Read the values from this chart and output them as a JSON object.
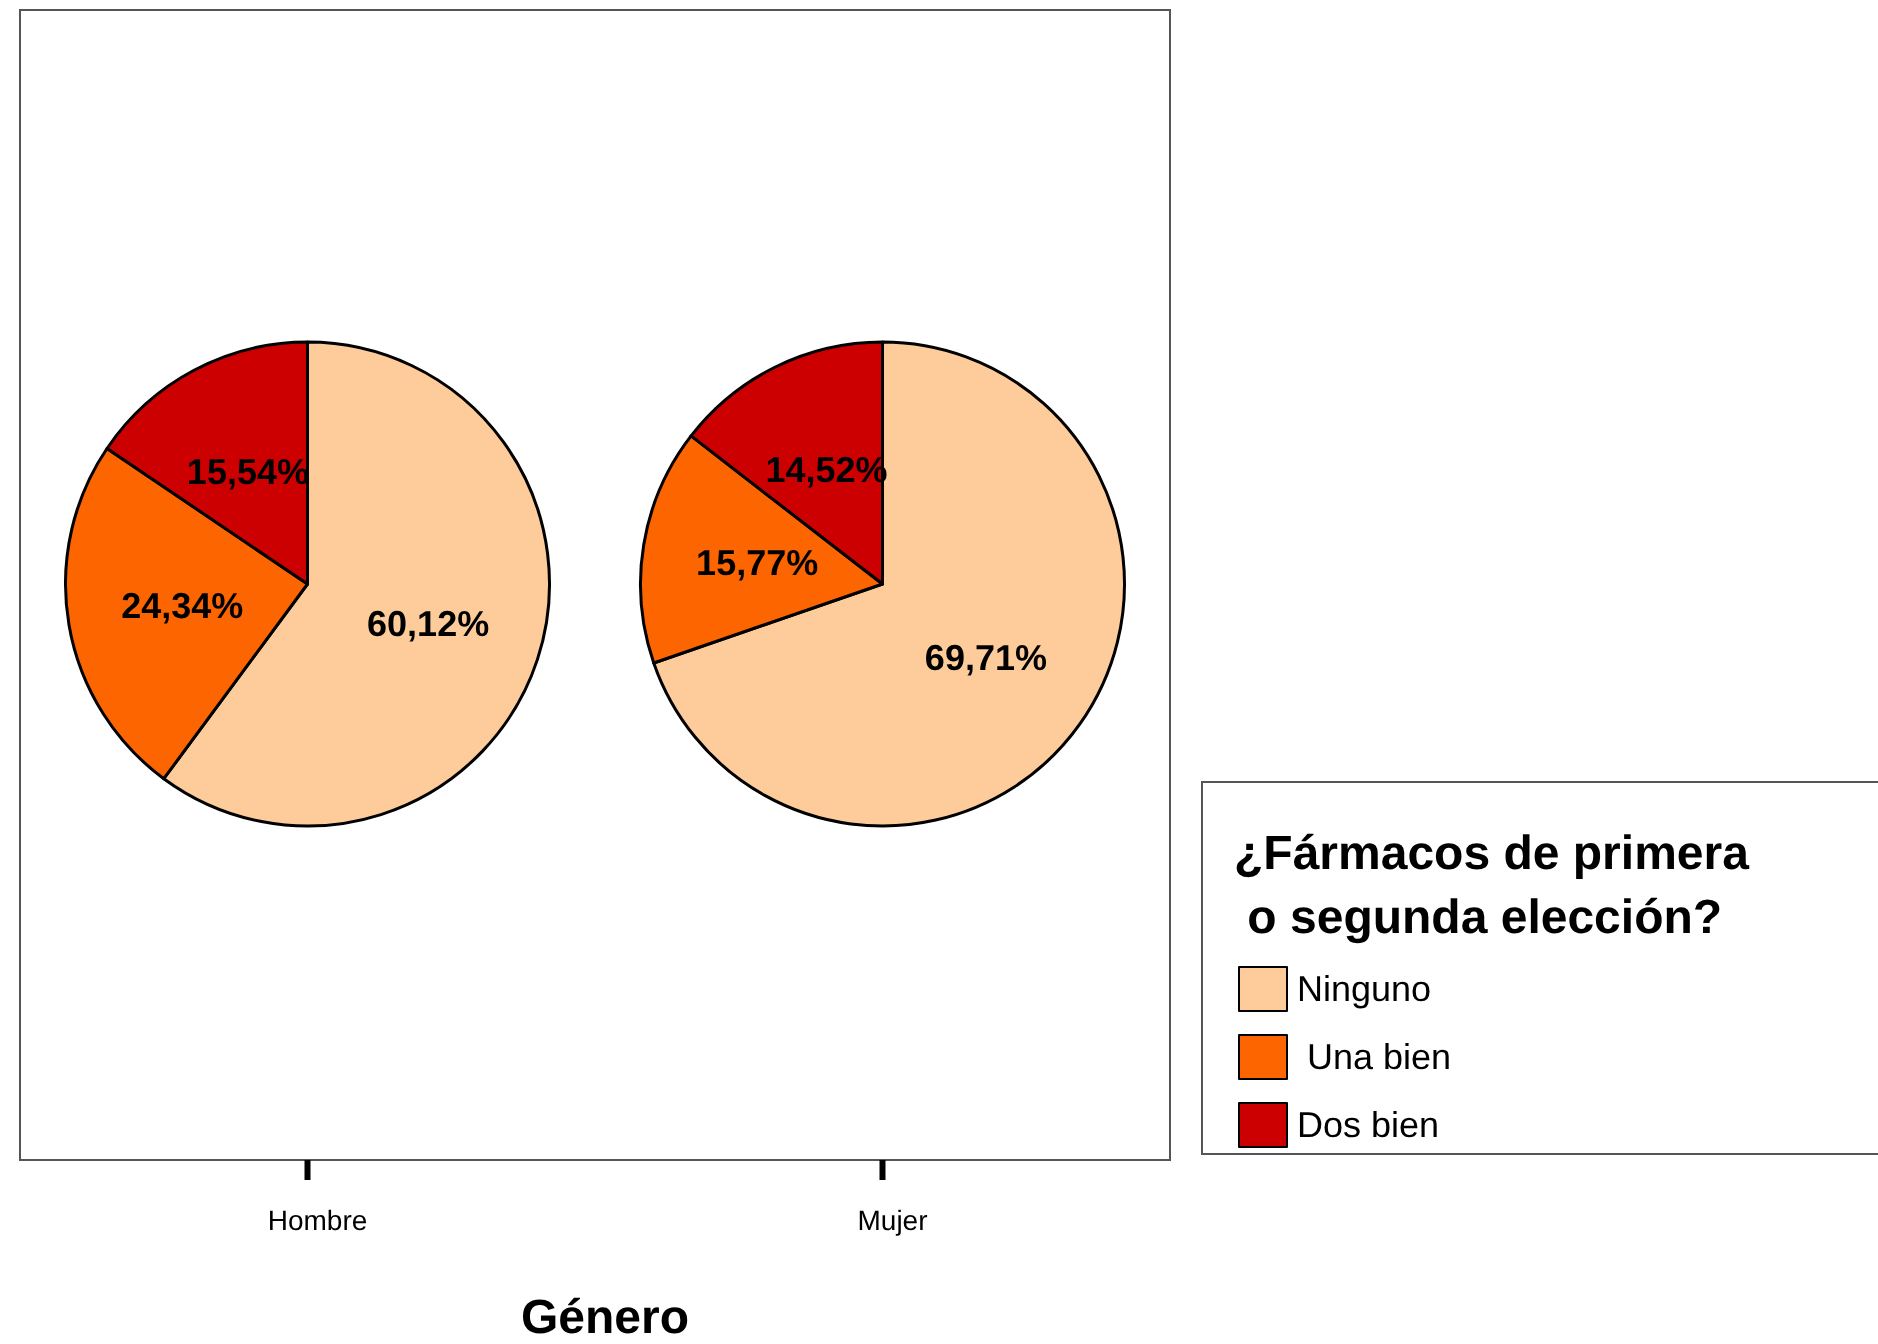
{
  "chart_data": {
    "type": "pie",
    "xlabel": "Género",
    "legend_title": "¿Fármacos de primera\n o segunda elección?",
    "legend": "right",
    "categories": [
      "Ninguno",
      " Una bien",
      "Dos bien"
    ],
    "colors": [
      "#fdcc9a",
      "#fd6500",
      "#cc0000"
    ],
    "series": [
      {
        "name": "Hombre",
        "values": [
          60.12,
          24.34,
          15.54
        ],
        "value_labels": [
          "60,12%",
          "24,34%",
          "15,54%"
        ]
      },
      {
        "name": "Mujer",
        "values": [
          69.71,
          15.77,
          14.52
        ],
        "value_labels": [
          "69,71%",
          "15,77%",
          "14,52%"
        ]
      }
    ]
  }
}
